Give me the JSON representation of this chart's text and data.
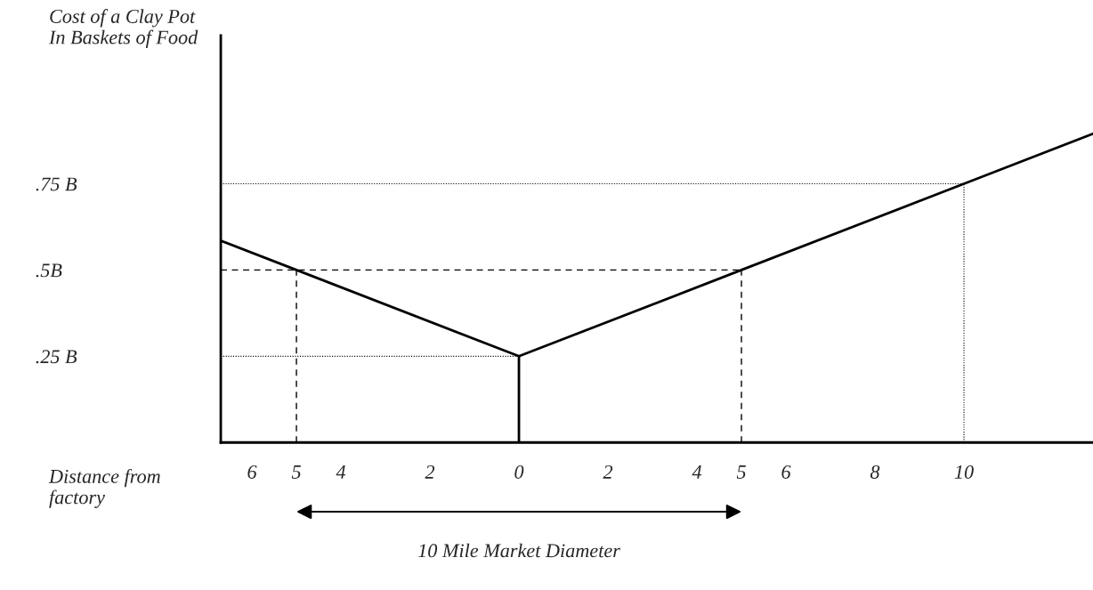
{
  "chart_data": {
    "type": "line",
    "xlabel": "Distance from\nfactory",
    "ylabel": "Cost of a Clay Pot\nIn Baskets of Food",
    "xlim": [
      -6.7,
      12.9
    ],
    "ylim": [
      0,
      1.18
    ],
    "xticks": [
      {
        "value": -6,
        "label": "6"
      },
      {
        "value": -5,
        "label": "5"
      },
      {
        "value": -4,
        "label": "4"
      },
      {
        "value": -2,
        "label": "2"
      },
      0,
      2,
      4,
      5,
      6,
      8,
      10
    ],
    "yticks": [
      {
        "value": 0.25,
        "label": ".25 B"
      },
      {
        "value": 0.5,
        "label": ".5B"
      },
      {
        "value": 0.75,
        "label": ".75 B"
      }
    ],
    "grid": false,
    "series": [
      {
        "color": "#000000",
        "line_style": "solid",
        "x": [
          0,
          5,
          10,
          12.9
        ],
        "values": [
          0.25,
          0.5,
          0.75,
          0.895
        ]
      },
      {
        "color": "#000000",
        "line_style": "solid",
        "x": [
          -6.7,
          -5,
          0
        ],
        "values": [
          0.585,
          0.5,
          0.25
        ]
      },
      {
        "color": "#000000",
        "line_style": "solid",
        "x": [
          0,
          0
        ],
        "values": [
          0,
          0.25
        ]
      },
      {
        "color": "#000000",
        "line_style": "dotted",
        "x": [
          -6.7,
          0
        ],
        "values": [
          0.25,
          0.25
        ]
      },
      {
        "color": "#000000",
        "line_style": "dashed",
        "x": [
          -6.7,
          5
        ],
        "values": [
          0.5,
          0.5
        ]
      },
      {
        "color": "#000000",
        "line_style": "dotted",
        "x": [
          -6.7,
          10
        ],
        "values": [
          0.75,
          0.75
        ]
      },
      {
        "color": "#000000",
        "line_style": "dashed",
        "x": [
          -5,
          -5
        ],
        "values": [
          0,
          0.5
        ]
      },
      {
        "color": "#000000",
        "line_style": "dashed",
        "x": [
          5,
          5
        ],
        "values": [
          0,
          0.5
        ]
      },
      {
        "color": "#000000",
        "line_style": "dotted",
        "x": [
          10,
          10
        ],
        "values": [
          0,
          0.75
        ]
      }
    ],
    "annotations": [
      "10 Mile Market Diameter"
    ]
  }
}
